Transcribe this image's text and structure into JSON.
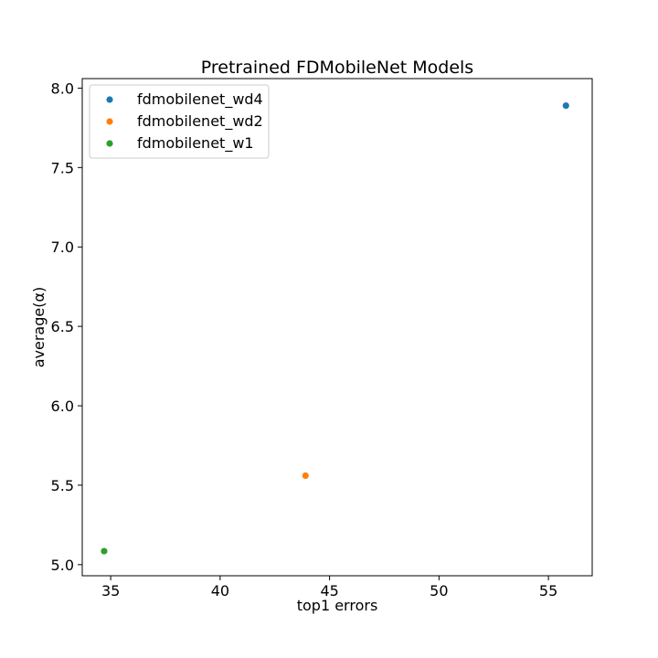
{
  "chart_data": {
    "type": "scatter",
    "title": "Pretrained FDMobileNet Models",
    "xlabel": "top1 errors",
    "ylabel": "average(α)",
    "xlim": [
      33.7,
      57.0
    ],
    "ylim": [
      4.93,
      8.06
    ],
    "xticks": [
      35,
      40,
      45,
      50,
      55
    ],
    "yticks": [
      5.0,
      5.5,
      6.0,
      6.5,
      7.0,
      7.5,
      8.0
    ],
    "xtick_labels": [
      "35",
      "40",
      "45",
      "50",
      "55"
    ],
    "ytick_labels": [
      "5.0",
      "5.5",
      "6.0",
      "6.5",
      "7.0",
      "7.5",
      "8.0"
    ],
    "grid": false,
    "legend_position": "top-left",
    "series": [
      {
        "name": "fdmobilenet_wd4",
        "color": "#1f77b4",
        "points": [
          {
            "x": 55.8,
            "y": 7.89
          }
        ]
      },
      {
        "name": "fdmobilenet_wd2",
        "color": "#ff7f0e",
        "points": [
          {
            "x": 43.9,
            "y": 5.56
          }
        ]
      },
      {
        "name": "fdmobilenet_w1",
        "color": "#2ca02c",
        "points": [
          {
            "x": 34.7,
            "y": 5.085
          }
        ]
      }
    ]
  }
}
